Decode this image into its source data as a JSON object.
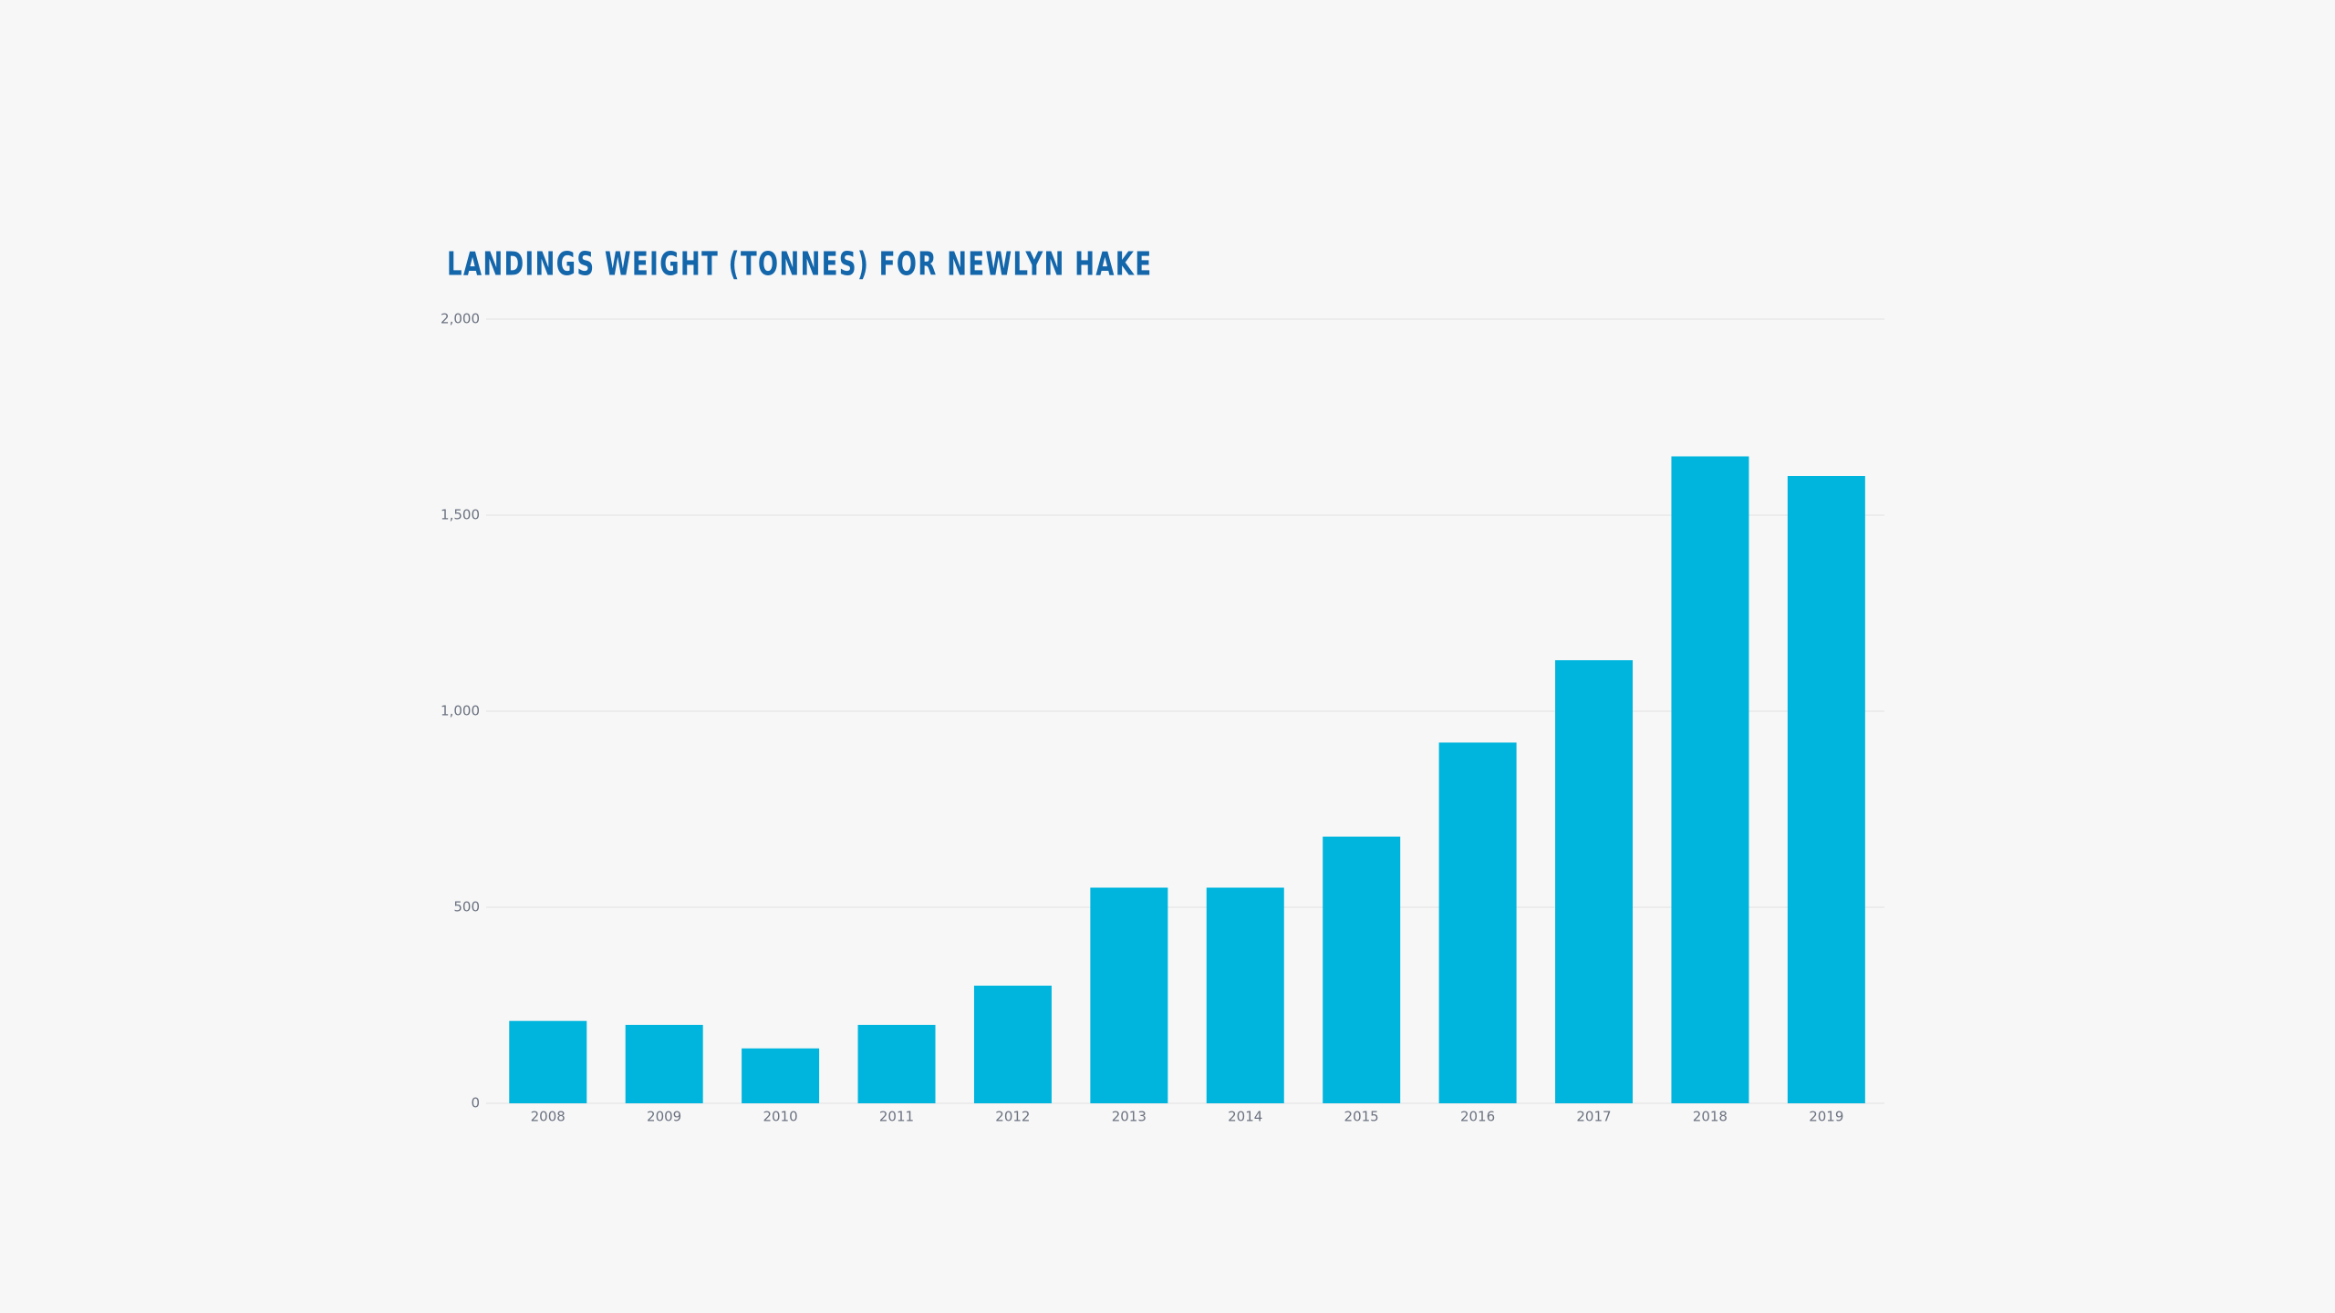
{
  "chart_data": {
    "type": "bar",
    "title": "LANDINGS WEIGHT (TONNES) FOR NEWLYN HAKE",
    "categories": [
      "2008",
      "2009",
      "2010",
      "2011",
      "2012",
      "2013",
      "2014",
      "2015",
      "2016",
      "2017",
      "2018",
      "2019"
    ],
    "values": [
      210,
      200,
      140,
      200,
      300,
      550,
      550,
      680,
      920,
      1130,
      1650,
      1600
    ],
    "color": "#00b5dd",
    "ylim": [
      0,
      2000
    ],
    "yticks": [
      0,
      500,
      {
        "value": 1000,
        "label": "1,000"
      },
      {
        "value": 1500,
        "label": "1,500"
      },
      {
        "value": 2000,
        "label": "2,000"
      }
    ],
    "grid": true
  }
}
